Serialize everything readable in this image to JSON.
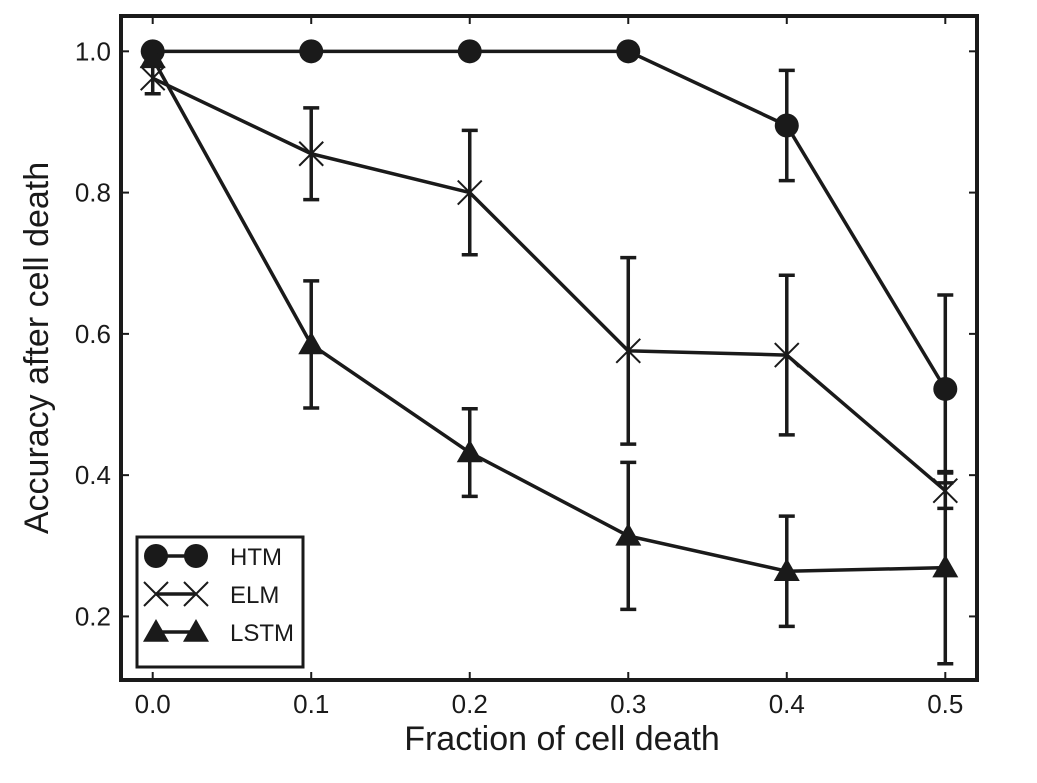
{
  "chart_data": {
    "type": "line",
    "xlabel": "Fraction of cell death",
    "ylabel": "Accuracy after cell death",
    "x": [
      0.0,
      0.1,
      0.2,
      0.3,
      0.4,
      0.5
    ],
    "x_tick_labels": [
      "0.0",
      "0.1",
      "0.2",
      "0.3",
      "0.4",
      "0.5"
    ],
    "y_tick_labels": [
      "0.2",
      "0.4",
      "0.6",
      "0.8",
      "1.0"
    ],
    "y_ticks": [
      0.2,
      0.4,
      0.6,
      0.8,
      1.0
    ],
    "xlim": [
      -0.02,
      0.52
    ],
    "ylim": [
      0.11,
      1.05
    ],
    "grid": false,
    "legend_position": "lower-left",
    "series": [
      {
        "name": "HTM",
        "marker": "circle",
        "values": [
          1.0,
          1.0,
          1.0,
          1.0,
          0.895,
          0.522
        ],
        "error": [
          0,
          0,
          0,
          0,
          0.078,
          0.133
        ]
      },
      {
        "name": "ELM",
        "marker": "x",
        "values": [
          0.962,
          0.855,
          0.8,
          0.576,
          0.57,
          0.378
        ],
        "error": [
          0.022,
          0.065,
          0.088,
          0.132,
          0.113,
          0.025
        ]
      },
      {
        "name": "LSTM",
        "marker": "triangle",
        "values": [
          0.99,
          0.585,
          0.432,
          0.314,
          0.264,
          0.269
        ],
        "error": [
          0.01,
          0.09,
          0.062,
          0.104,
          0.078,
          0.136
        ]
      }
    ],
    "colors": {
      "line": "#1a1a1a",
      "background": "#ffffff"
    }
  }
}
